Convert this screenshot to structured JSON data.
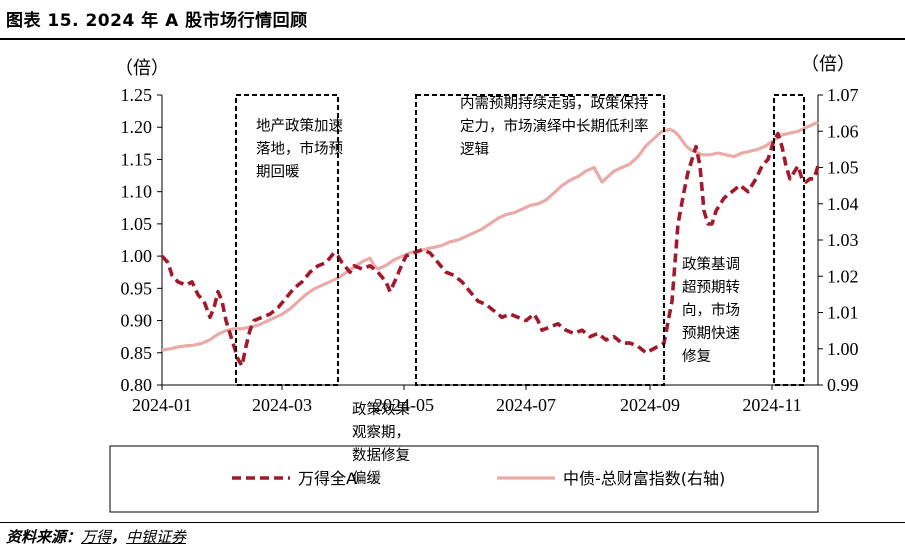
{
  "title": "图表 15. 2024 年 A 股市场行情回顾",
  "source": {
    "prefix": "资料来源：",
    "items": [
      "万得",
      "中银证券"
    ],
    "sep": "，"
  },
  "chart_data": {
    "type": "line",
    "left_axis": {
      "unit": "（倍）",
      "min": 0.8,
      "max": 1.25,
      "ticks": [
        "1.25",
        "1.20",
        "1.15",
        "1.10",
        "1.05",
        "1.00",
        "0.95",
        "0.90",
        "0.85",
        "0.80"
      ]
    },
    "right_axis": {
      "unit": "（倍）",
      "min": 0.99,
      "max": 1.07,
      "ticks": [
        "1.07",
        "1.06",
        "1.05",
        "1.04",
        "1.03",
        "1.02",
        "1.01",
        "1.00",
        "0.99"
      ]
    },
    "x_ticks": [
      {
        "label": "2024-01",
        "t": 0
      },
      {
        "label": "2024-03",
        "t": 60
      },
      {
        "label": "2024-05",
        "t": 121
      },
      {
        "label": "2024-07",
        "t": 182
      },
      {
        "label": "2024-09",
        "t": 244
      },
      {
        "label": "2024-11",
        "t": 305
      }
    ],
    "series": [
      {
        "name": "万得全A",
        "axis": "left",
        "color": "#a01a2c",
        "style": "dashed",
        "points": [
          [
            0,
            1.0
          ],
          [
            3,
            0.99
          ],
          [
            5,
            0.97
          ],
          [
            8,
            0.96
          ],
          [
            12,
            0.955
          ],
          [
            15,
            0.96
          ],
          [
            18,
            0.94
          ],
          [
            21,
            0.93
          ],
          [
            24,
            0.905
          ],
          [
            26,
            0.92
          ],
          [
            28,
            0.945
          ],
          [
            30,
            0.93
          ],
          [
            32,
            0.9
          ],
          [
            34,
            0.88
          ],
          [
            36,
            0.86
          ],
          [
            38,
            0.84
          ],
          [
            40,
            0.83
          ],
          [
            42,
            0.86
          ],
          [
            44,
            0.885
          ],
          [
            46,
            0.9
          ],
          [
            50,
            0.905
          ],
          [
            54,
            0.91
          ],
          [
            58,
            0.92
          ],
          [
            62,
            0.935
          ],
          [
            66,
            0.95
          ],
          [
            70,
            0.96
          ],
          [
            74,
            0.975
          ],
          [
            78,
            0.985
          ],
          [
            82,
            0.99
          ],
          [
            86,
            1.005
          ],
          [
            88,
            1.0
          ],
          [
            90,
            0.99
          ],
          [
            94,
            0.975
          ],
          [
            96,
            0.985
          ],
          [
            100,
            0.98
          ],
          [
            104,
            0.985
          ],
          [
            108,
            0.975
          ],
          [
            112,
            0.96
          ],
          [
            114,
            0.945
          ],
          [
            117,
            0.965
          ],
          [
            119,
            0.98
          ],
          [
            122,
            1.0
          ],
          [
            126,
            1.005
          ],
          [
            130,
            1.01
          ],
          [
            134,
            1.005
          ],
          [
            138,
            0.99
          ],
          [
            142,
            0.975
          ],
          [
            146,
            0.97
          ],
          [
            150,
            0.96
          ],
          [
            154,
            0.945
          ],
          [
            158,
            0.93
          ],
          [
            162,
            0.925
          ],
          [
            166,
            0.915
          ],
          [
            170,
            0.905
          ],
          [
            174,
            0.91
          ],
          [
            178,
            0.905
          ],
          [
            182,
            0.9
          ],
          [
            186,
            0.91
          ],
          [
            188,
            0.9
          ],
          [
            190,
            0.885
          ],
          [
            194,
            0.89
          ],
          [
            198,
            0.895
          ],
          [
            202,
            0.885
          ],
          [
            206,
            0.88
          ],
          [
            210,
            0.885
          ],
          [
            214,
            0.875
          ],
          [
            218,
            0.88
          ],
          [
            222,
            0.87
          ],
          [
            226,
            0.875
          ],
          [
            230,
            0.865
          ],
          [
            234,
            0.865
          ],
          [
            238,
            0.86
          ],
          [
            242,
            0.85
          ],
          [
            245,
            0.855
          ],
          [
            248,
            0.86
          ],
          [
            251,
            0.865
          ],
          [
            255,
            0.93
          ],
          [
            258,
            1.05
          ],
          [
            261,
            1.1
          ],
          [
            263,
            1.13
          ],
          [
            265,
            1.15
          ],
          [
            267,
            1.17
          ],
          [
            269,
            1.14
          ],
          [
            271,
            1.07
          ],
          [
            273,
            1.05
          ],
          [
            275,
            1.05
          ],
          [
            277,
            1.07
          ],
          [
            281,
            1.09
          ],
          [
            285,
            1.1
          ],
          [
            289,
            1.11
          ],
          [
            293,
            1.1
          ],
          [
            297,
            1.12
          ],
          [
            300,
            1.14
          ],
          [
            303,
            1.15
          ],
          [
            306,
            1.18
          ],
          [
            308,
            1.19
          ],
          [
            310,
            1.17
          ],
          [
            312,
            1.14
          ],
          [
            314,
            1.12
          ],
          [
            316,
            1.13
          ],
          [
            318,
            1.14
          ],
          [
            320,
            1.12
          ],
          [
            322,
            1.115
          ],
          [
            324,
            1.12
          ],
          [
            326,
            1.12
          ],
          [
            328,
            1.14
          ]
        ]
      },
      {
        "name": "中债-总财富指数(右轴)",
        "axis": "right",
        "color": "#e9aaa8",
        "style": "solid",
        "points": [
          [
            0,
            0.9996
          ],
          [
            4,
            1.0
          ],
          [
            8,
            1.0005
          ],
          [
            12,
            1.0008
          ],
          [
            16,
            1.001
          ],
          [
            20,
            1.0015
          ],
          [
            24,
            1.0025
          ],
          [
            28,
            1.004
          ],
          [
            32,
            1.005
          ],
          [
            36,
            1.0055
          ],
          [
            40,
            1.0055
          ],
          [
            44,
            1.006
          ],
          [
            48,
            1.0065
          ],
          [
            52,
            1.0075
          ],
          [
            56,
            1.0085
          ],
          [
            60,
            1.0095
          ],
          [
            64,
            1.011
          ],
          [
            68,
            1.013
          ],
          [
            72,
            1.015
          ],
          [
            76,
            1.0165
          ],
          [
            80,
            1.0175
          ],
          [
            84,
            1.0185
          ],
          [
            88,
            1.0195
          ],
          [
            92,
            1.021
          ],
          [
            96,
            1.0225
          ],
          [
            100,
            1.024
          ],
          [
            104,
            1.025
          ],
          [
            106,
            1.023
          ],
          [
            108,
            1.022
          ],
          [
            112,
            1.023
          ],
          [
            116,
            1.0245
          ],
          [
            120,
            1.0255
          ],
          [
            124,
            1.0265
          ],
          [
            128,
            1.027
          ],
          [
            132,
            1.0275
          ],
          [
            136,
            1.028
          ],
          [
            140,
            1.0285
          ],
          [
            144,
            1.0295
          ],
          [
            148,
            1.03
          ],
          [
            152,
            1.031
          ],
          [
            156,
            1.032
          ],
          [
            160,
            1.033
          ],
          [
            164,
            1.0345
          ],
          [
            168,
            1.036
          ],
          [
            172,
            1.037
          ],
          [
            176,
            1.0375
          ],
          [
            180,
            1.0385
          ],
          [
            184,
            1.0395
          ],
          [
            188,
            1.04
          ],
          [
            192,
            1.041
          ],
          [
            196,
            1.043
          ],
          [
            200,
            1.045
          ],
          [
            204,
            1.0465
          ],
          [
            208,
            1.0475
          ],
          [
            212,
            1.049
          ],
          [
            216,
            1.05
          ],
          [
            218,
            1.048
          ],
          [
            220,
            1.046
          ],
          [
            222,
            1.047
          ],
          [
            226,
            1.049
          ],
          [
            230,
            1.05
          ],
          [
            234,
            1.051
          ],
          [
            238,
            1.053
          ],
          [
            242,
            1.056
          ],
          [
            246,
            1.058
          ],
          [
            250,
            1.06
          ],
          [
            254,
            1.0605
          ],
          [
            256,
            1.06
          ],
          [
            258,
            1.059
          ],
          [
            260,
            1.0575
          ],
          [
            262,
            1.056
          ],
          [
            264,
            1.055
          ],
          [
            266,
            1.0545
          ],
          [
            268,
            1.054
          ],
          [
            270,
            1.0535
          ],
          [
            274,
            1.0535
          ],
          [
            278,
            1.054
          ],
          [
            282,
            1.0535
          ],
          [
            286,
            1.053
          ],
          [
            290,
            1.054
          ],
          [
            294,
            1.0545
          ],
          [
            298,
            1.055
          ],
          [
            302,
            1.056
          ],
          [
            306,
            1.0575
          ],
          [
            310,
            1.059
          ],
          [
            314,
            1.0595
          ],
          [
            318,
            1.06
          ],
          [
            322,
            1.061
          ],
          [
            326,
            1.062
          ],
          [
            328,
            1.0625
          ]
        ]
      }
    ],
    "boxes": [
      {
        "t0": 37,
        "t1": 88,
        "y0": 1.07,
        "y1": 0.99,
        "text": [
          "地产政策加速",
          "落地，市场预",
          "期回暖"
        ],
        "text_t": 32,
        "text_v": 1.195
      },
      {
        "t0": 127,
        "t1": 251,
        "y0": 1.07,
        "y1": 0.99,
        "text": [
          "内需预期持续走弱，政策保持",
          "定力，市场演绎中长期低利率",
          "逻辑"
        ],
        "text_t": 134,
        "text_v": 1.23
      },
      {
        "t0": 306,
        "t1": 321,
        "y0": 1.07,
        "y1": 0.99,
        "text": [],
        "text_t": 0,
        "text_v": 0
      }
    ],
    "free_text": [
      {
        "text": [
          "政策效果",
          "观察期，",
          "数据修复",
          "偏缓"
        ],
        "t": 95,
        "v": 0.982
      },
      {
        "text": [
          "政策基调",
          "超预期转",
          "向，市场",
          "预期快速",
          "修复"
        ],
        "t": 260,
        "v": 1.022
      }
    ]
  }
}
